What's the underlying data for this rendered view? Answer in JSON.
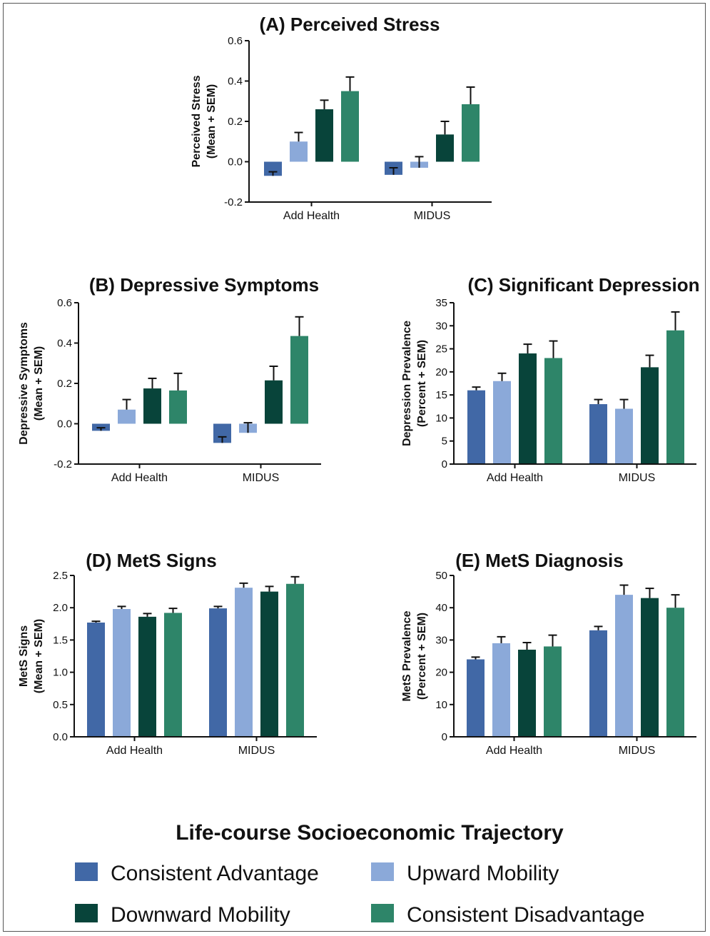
{
  "chart_data": [
    {
      "type": "bar",
      "title": "(A) Perceived Stress",
      "ylabel_lines": [
        "Perceived Stress",
        "(Mean + SEM)"
      ],
      "categories": [
        "Add Health",
        "MIDUS"
      ],
      "ylim": [
        -0.2,
        0.6
      ],
      "yticks": [
        "-0.2",
        "0.0",
        "0.2",
        "0.4",
        "0.6"
      ],
      "series": [
        {
          "name": "Consistent Advantage",
          "values": [
            -0.07,
            -0.065
          ],
          "errors": [
            0.02,
            0.035
          ]
        },
        {
          "name": "Upward Mobility",
          "values": [
            0.1,
            -0.03
          ],
          "errors": [
            0.045,
            0.055
          ]
        },
        {
          "name": "Downward Mobility",
          "values": [
            0.26,
            0.135
          ],
          "errors": [
            0.045,
            0.065
          ]
        },
        {
          "name": "Consistent Disadvantage",
          "values": [
            0.35,
            0.285
          ],
          "errors": [
            0.07,
            0.085
          ]
        }
      ]
    },
    {
      "type": "bar",
      "title": "(B) Depressive Symptoms",
      "ylabel_lines": [
        "Depressive Symptoms",
        "(Mean + SEM)"
      ],
      "categories": [
        "Add Health",
        "MIDUS"
      ],
      "ylim": [
        -0.2,
        0.6
      ],
      "yticks": [
        "-0.2",
        "0.0",
        "0.2",
        "0.4",
        "0.6"
      ],
      "series": [
        {
          "name": "Consistent Advantage",
          "values": [
            -0.035,
            -0.095
          ],
          "errors": [
            0.015,
            0.03
          ]
        },
        {
          "name": "Upward Mobility",
          "values": [
            0.07,
            -0.045
          ],
          "errors": [
            0.05,
            0.05
          ]
        },
        {
          "name": "Downward Mobility",
          "values": [
            0.175,
            0.215
          ],
          "errors": [
            0.05,
            0.07
          ]
        },
        {
          "name": "Consistent Disadvantage",
          "values": [
            0.165,
            0.435
          ],
          "errors": [
            0.085,
            0.095
          ]
        }
      ]
    },
    {
      "type": "bar",
      "title": "(C) Significant Depression",
      "ylabel_lines": [
        "Depression Prevalence",
        "(Percent + SEM)"
      ],
      "categories": [
        "Add Health",
        "MIDUS"
      ],
      "ylim": [
        0,
        35
      ],
      "yticks": [
        "0",
        "5",
        "10",
        "15",
        "20",
        "25",
        "30",
        "35"
      ],
      "series": [
        {
          "name": "Consistent Advantage",
          "values": [
            16,
            13
          ],
          "errors": [
            0.7,
            1.0
          ]
        },
        {
          "name": "Upward Mobility",
          "values": [
            18,
            12
          ],
          "errors": [
            1.7,
            2.0
          ]
        },
        {
          "name": "Downward Mobility",
          "values": [
            24,
            21
          ],
          "errors": [
            2.0,
            2.6
          ]
        },
        {
          "name": "Consistent Disadvantage",
          "values": [
            23,
            29
          ],
          "errors": [
            3.7,
            4.0
          ]
        }
      ]
    },
    {
      "type": "bar",
      "title": "(D) MetS Signs",
      "ylabel_lines": [
        "MetS Signs",
        "(Mean + SEM)"
      ],
      "categories": [
        "Add Health",
        "MIDUS"
      ],
      "ylim": [
        0,
        2.5
      ],
      "yticks": [
        "0.0",
        "0.5",
        "1.0",
        "1.5",
        "2.0",
        "2.5"
      ],
      "series": [
        {
          "name": "Consistent Advantage",
          "values": [
            1.77,
            1.99
          ],
          "errors": [
            0.02,
            0.03
          ]
        },
        {
          "name": "Upward Mobility",
          "values": [
            1.98,
            2.31
          ],
          "errors": [
            0.04,
            0.07
          ]
        },
        {
          "name": "Downward Mobility",
          "values": [
            1.86,
            2.25
          ],
          "errors": [
            0.05,
            0.08
          ]
        },
        {
          "name": "Consistent Disadvantage",
          "values": [
            1.92,
            2.37
          ],
          "errors": [
            0.07,
            0.11
          ]
        }
      ]
    },
    {
      "type": "bar",
      "title": "(E) MetS Diagnosis",
      "ylabel_lines": [
        "MetS Prevalence",
        "(Percent + SEM)"
      ],
      "categories": [
        "Add Health",
        "MIDUS"
      ],
      "ylim": [
        0,
        50
      ],
      "yticks": [
        "0",
        "10",
        "20",
        "30",
        "40",
        "50"
      ],
      "series": [
        {
          "name": "Consistent Advantage",
          "values": [
            24,
            33
          ],
          "errors": [
            0.7,
            1.2
          ]
        },
        {
          "name": "Upward Mobility",
          "values": [
            29,
            44
          ],
          "errors": [
            2.0,
            3.0
          ]
        },
        {
          "name": "Downward Mobility",
          "values": [
            27,
            43
          ],
          "errors": [
            2.2,
            3.0
          ]
        },
        {
          "name": "Consistent Disadvantage",
          "values": [
            28,
            40
          ],
          "errors": [
            3.5,
            4.0
          ]
        }
      ]
    }
  ],
  "legend": {
    "title": "Life-course Socioeconomic Trajectory",
    "items": [
      {
        "label": "Consistent Advantage",
        "color": "#4168A6"
      },
      {
        "label": "Upward Mobility",
        "color": "#8BA9D9"
      },
      {
        "label": "Downward Mobility",
        "color": "#08443A"
      },
      {
        "label": "Consistent Disadvantage",
        "color": "#2E8569"
      }
    ]
  },
  "colors": {
    "Consistent Advantage": "#4168A6",
    "Upward Mobility": "#8BA9D9",
    "Downward Mobility": "#08443A",
    "Consistent Disadvantage": "#2E8569"
  }
}
